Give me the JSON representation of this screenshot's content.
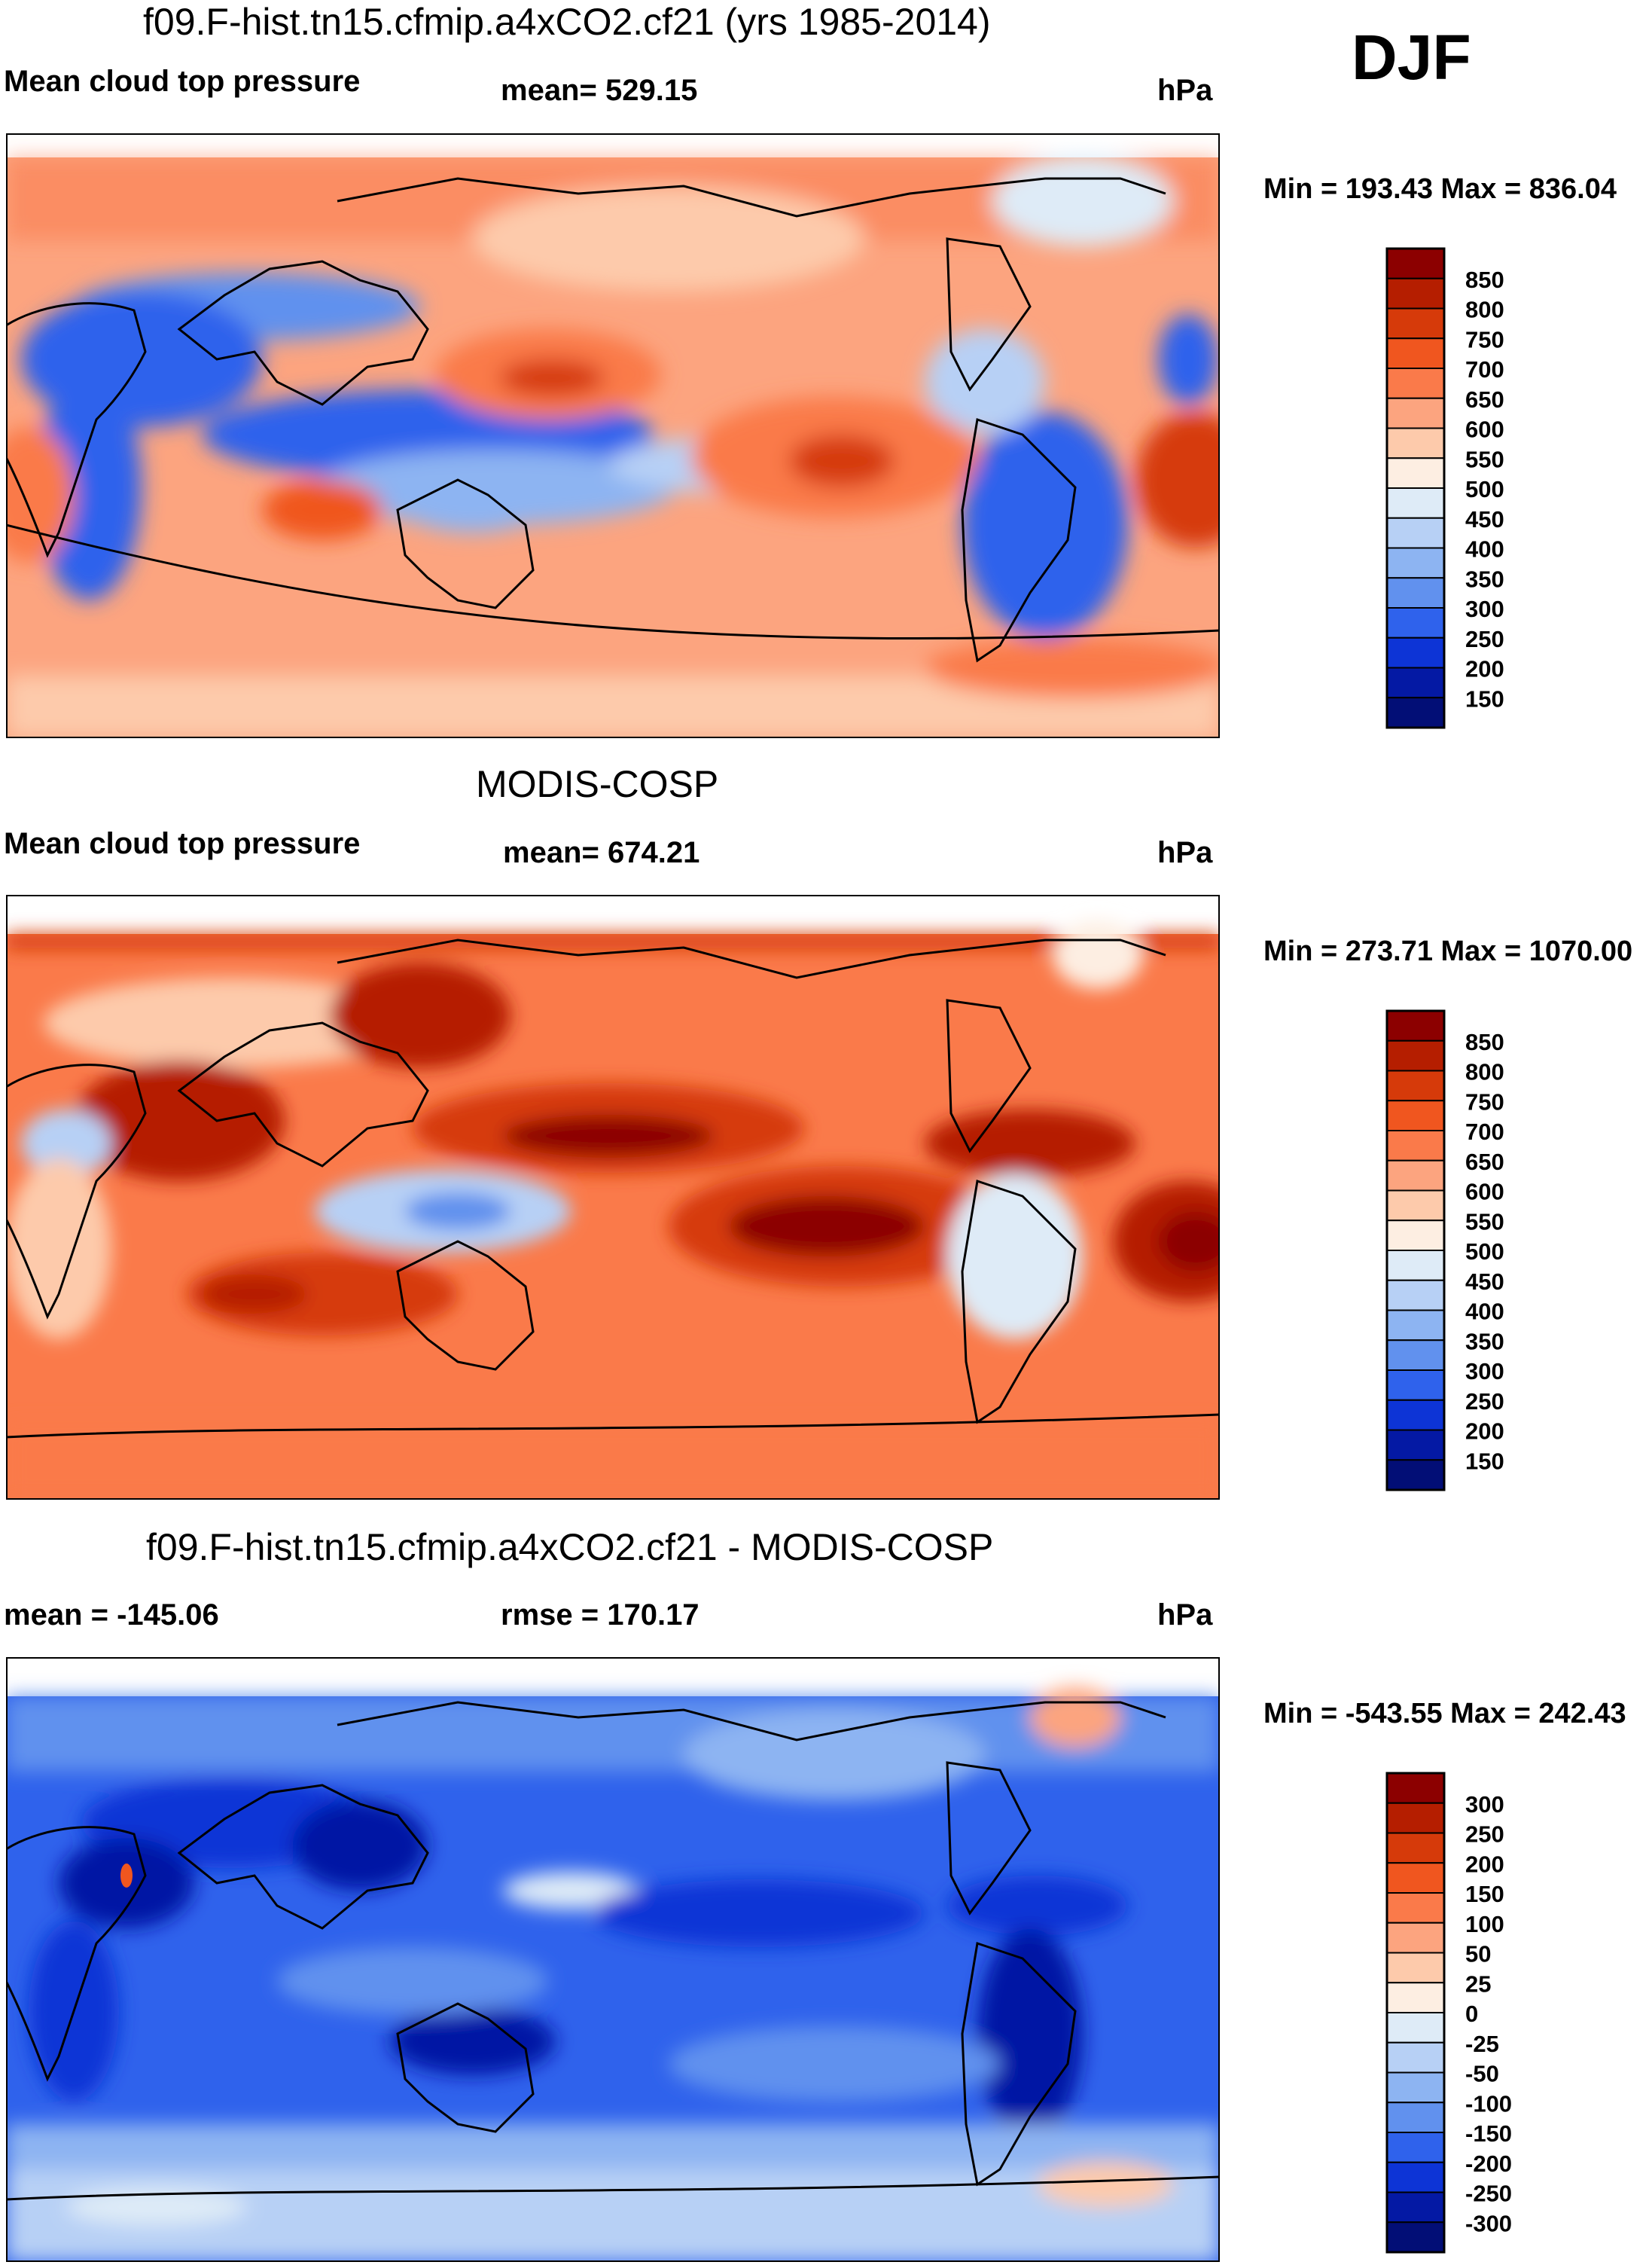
{
  "season": "DJF",
  "panels": [
    {
      "title": "f09.F-hist.tn15.cfmip.a4xCO2.cf21 (yrs 1985-2014)",
      "left_label": "Mean cloud top pressure",
      "center_label": "mean= 529.15",
      "units": "hPa",
      "minmax": "Min = 193.43 Max = 836.04",
      "colorbar": {
        "levels": [
          "850",
          "800",
          "750",
          "700",
          "650",
          "600",
          "550",
          "500",
          "450",
          "400",
          "350",
          "300",
          "250",
          "200",
          "150"
        ],
        "colors": [
          "#8c0000",
          "#b51e00",
          "#d63a0a",
          "#f0561f",
          "#fa7a4a",
          "#fca47f",
          "#fdcaab",
          "#fdeee2",
          "#deebf7",
          "#b7d0f5",
          "#8db4f2",
          "#6191ee",
          "#2f62ec",
          "#0d34d6",
          "#0419a4",
          "#020e76"
        ]
      }
    },
    {
      "title": "MODIS-COSP",
      "left_label": "Mean cloud top pressure",
      "center_label": "mean= 674.21",
      "units": "hPa",
      "minmax": "Min = 273.71 Max = 1070.00",
      "colorbar": {
        "levels": [
          "850",
          "800",
          "750",
          "700",
          "650",
          "600",
          "550",
          "500",
          "450",
          "400",
          "350",
          "300",
          "250",
          "200",
          "150"
        ],
        "colors": [
          "#8c0000",
          "#b51e00",
          "#d63a0a",
          "#f0561f",
          "#fa7a4a",
          "#fca47f",
          "#fdcaab",
          "#fdeee2",
          "#deebf7",
          "#b7d0f5",
          "#8db4f2",
          "#6191ee",
          "#2f62ec",
          "#0d34d6",
          "#0419a4",
          "#020e76"
        ]
      }
    },
    {
      "title": "f09.F-hist.tn15.cfmip.a4xCO2.cf21 - MODIS-COSP",
      "left_label": "mean = -145.06",
      "center_label": "rmse = 170.17",
      "units": "hPa",
      "minmax": "Min = -543.55 Max = 242.43",
      "colorbar": {
        "levels": [
          "300",
          "250",
          "200",
          "150",
          "100",
          "50",
          "25",
          "0",
          "-25",
          "-50",
          "-100",
          "-150",
          "-200",
          "-250",
          "-300"
        ],
        "colors": [
          "#8c0000",
          "#b51e00",
          "#d63a0a",
          "#f0561f",
          "#fa7a4a",
          "#fca47f",
          "#fdcaab",
          "#fdeee2",
          "#deebf7",
          "#b7d0f5",
          "#8db4f2",
          "#6191ee",
          "#2f62ec",
          "#0d34d6",
          "#0419a4",
          "#020e76"
        ]
      }
    }
  ]
}
